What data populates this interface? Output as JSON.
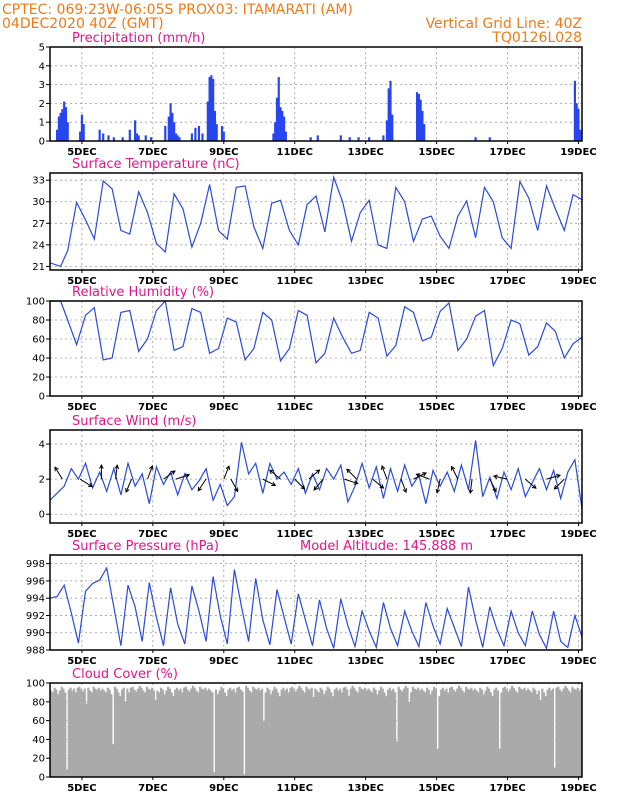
{
  "header": {
    "line1_left": "CPTEC:   069:23W-06:05S   PROX03: ITAMARATI (AM)",
    "line2_left": "04DEC2020 40Z (GMT)",
    "line2_right": "Vertical Grid Line: 40Z",
    "line3_right": "TQ0126L028"
  },
  "x_axis": {
    "tick_labels": [
      "5DEC",
      "7DEC",
      "9DEC",
      "11DEC",
      "13DEC",
      "15DEC",
      "17DEC",
      "19DEC"
    ],
    "tick_days": [
      5,
      7,
      9,
      11,
      13,
      15,
      17,
      19
    ],
    "range_days": [
      4.1,
      19.1
    ]
  },
  "colors": {
    "line": "#2a4bd7",
    "precip": "#2846f0",
    "cloud": "#aaaaaa",
    "header": "#f07a18",
    "title": "#e0168c"
  },
  "chart_data": [
    {
      "id": "precip",
      "type": "bar",
      "title": "Precipitation (mm/h)",
      "ylim": [
        0,
        5
      ],
      "yticks": [
        0,
        1,
        2,
        3,
        4,
        5
      ],
      "x": [
        4.3,
        4.35,
        4.4,
        4.45,
        4.5,
        4.55,
        4.6,
        4.95,
        5.0,
        5.05,
        5.5,
        5.6,
        5.75,
        5.9,
        6.15,
        6.35,
        6.5,
        6.55,
        6.6,
        6.8,
        6.95,
        7.35,
        7.45,
        7.5,
        7.55,
        7.6,
        7.65,
        7.7,
        7.75,
        8.1,
        8.2,
        8.3,
        8.4,
        8.55,
        8.6,
        8.65,
        8.7,
        8.75,
        8.8,
        8.95,
        9.0,
        10.4,
        10.45,
        10.5,
        10.55,
        10.6,
        10.65,
        10.7,
        10.75,
        11.45,
        11.65,
        12.3,
        12.55,
        12.8,
        13.1,
        13.5,
        13.6,
        13.65,
        13.7,
        13.75,
        14.45,
        14.5,
        14.55,
        14.6,
        14.65,
        16.1,
        16.5,
        18.9,
        18.95,
        19.0,
        19.05
      ],
      "values": [
        0.6,
        1.3,
        1.5,
        1.7,
        2.1,
        1.8,
        1.0,
        0.5,
        1.4,
        0.9,
        0.6,
        0.4,
        0.3,
        0.2,
        0.2,
        0.6,
        1.1,
        0.4,
        0.3,
        0.3,
        0.2,
        0.8,
        1.3,
        2.0,
        1.5,
        1.0,
        0.4,
        0.3,
        0.2,
        0.4,
        0.7,
        0.8,
        0.4,
        2.1,
        3.4,
        3.5,
        3.3,
        1.6,
        0.9,
        0.8,
        0.5,
        0.4,
        1.0,
        2.3,
        3.4,
        1.8,
        1.6,
        1.3,
        0.5,
        0.2,
        0.3,
        0.3,
        0.2,
        0.2,
        0.2,
        0.3,
        1.1,
        2.8,
        3.2,
        1.4,
        2.6,
        2.5,
        2.2,
        1.6,
        0.9,
        0.2,
        0.2,
        3.2,
        2.0,
        1.7,
        0.6
      ]
    },
    {
      "id": "temperature",
      "type": "line",
      "title": "Surface Temperature (nC)",
      "ylim": [
        20.5,
        34
      ],
      "yticks": [
        21,
        24,
        27,
        30,
        33
      ],
      "x": [
        4.1,
        4.4,
        4.6,
        4.85,
        5.1,
        5.35,
        5.6,
        5.85,
        6.1,
        6.35,
        6.6,
        6.85,
        7.1,
        7.35,
        7.6,
        7.85,
        8.1,
        8.35,
        8.6,
        8.85,
        9.1,
        9.35,
        9.6,
        9.85,
        10.1,
        10.35,
        10.6,
        10.85,
        11.1,
        11.35,
        11.6,
        11.85,
        12.1,
        12.35,
        12.6,
        12.85,
        13.1,
        13.35,
        13.6,
        13.85,
        14.1,
        14.35,
        14.6,
        14.85,
        15.1,
        15.35,
        15.6,
        15.85,
        16.1,
        16.35,
        16.6,
        16.85,
        17.1,
        17.35,
        17.6,
        17.85,
        18.1,
        18.35,
        18.6,
        18.85,
        19.1
      ],
      "values": [
        21.5,
        21.0,
        23.2,
        29.9,
        27.5,
        24.8,
        32.9,
        31.8,
        26.0,
        25.5,
        31.4,
        28.5,
        24.2,
        23.0,
        31.1,
        29.0,
        23.7,
        27.0,
        32.4,
        26.0,
        24.8,
        32.0,
        32.2,
        26.5,
        23.5,
        29.8,
        30.2,
        26.0,
        24.0,
        29.6,
        30.8,
        25.8,
        33.4,
        30.0,
        24.5,
        28.5,
        30.2,
        24.0,
        23.5,
        32.0,
        30.0,
        24.5,
        27.6,
        28.0,
        25.2,
        23.5,
        28.0,
        30.1,
        25.0,
        32.0,
        30.0,
        25.0,
        23.5,
        32.8,
        30.5,
        26.0,
        32.2,
        29.0,
        26.0,
        31.0,
        30.3
      ]
    },
    {
      "id": "humidity",
      "type": "line",
      "title": "Relative Humidity (%)",
      "ylim": [
        0,
        100
      ],
      "yticks": [
        0,
        20,
        40,
        60,
        80,
        100
      ],
      "x": [
        4.1,
        4.4,
        4.6,
        4.85,
        5.1,
        5.35,
        5.6,
        5.85,
        6.1,
        6.35,
        6.6,
        6.85,
        7.1,
        7.35,
        7.6,
        7.85,
        8.1,
        8.35,
        8.6,
        8.85,
        9.1,
        9.35,
        9.6,
        9.85,
        10.1,
        10.35,
        10.6,
        10.85,
        11.1,
        11.35,
        11.6,
        11.85,
        12.1,
        12.35,
        12.6,
        12.85,
        13.1,
        13.35,
        13.6,
        13.85,
        14.1,
        14.35,
        14.6,
        14.85,
        15.1,
        15.35,
        15.6,
        15.85,
        16.1,
        16.35,
        16.6,
        16.85,
        17.1,
        17.35,
        17.6,
        17.85,
        18.1,
        18.35,
        18.6,
        18.85,
        19.1
      ],
      "values": [
        100,
        100,
        80,
        54,
        85,
        93,
        38,
        40,
        88,
        90,
        47,
        60,
        90,
        100,
        48,
        52,
        92,
        88,
        45,
        50,
        82,
        78,
        38,
        50,
        88,
        80,
        37,
        50,
        90,
        85,
        35,
        45,
        82,
        62,
        45,
        48,
        88,
        82,
        42,
        53,
        94,
        88,
        58,
        62,
        89,
        98,
        48,
        60,
        84,
        90,
        32,
        50,
        80,
        76,
        43,
        52,
        77,
        68,
        40,
        55,
        62
      ]
    },
    {
      "id": "wind",
      "type": "line",
      "title": "Surface Wind (m/s)",
      "ylim": [
        -0.5,
        4.8
      ],
      "yticks": [
        0,
        2,
        4
      ],
      "x": [
        4.1,
        4.3,
        4.5,
        4.7,
        4.9,
        5.1,
        5.3,
        5.5,
        5.7,
        5.9,
        6.1,
        6.3,
        6.5,
        6.7,
        6.9,
        7.1,
        7.3,
        7.5,
        7.7,
        7.9,
        8.1,
        8.3,
        8.5,
        8.7,
        8.9,
        9.1,
        9.3,
        9.5,
        9.7,
        9.9,
        10.1,
        10.3,
        10.5,
        10.7,
        10.9,
        11.1,
        11.3,
        11.5,
        11.7,
        11.9,
        12.1,
        12.3,
        12.5,
        12.7,
        12.9,
        13.1,
        13.3,
        13.5,
        13.7,
        13.9,
        14.1,
        14.3,
        14.5,
        14.7,
        14.9,
        15.1,
        15.3,
        15.5,
        15.7,
        15.9,
        16.1,
        16.3,
        16.5,
        16.7,
        16.9,
        17.1,
        17.3,
        17.5,
        17.7,
        17.9,
        18.1,
        18.3,
        18.5,
        18.7,
        18.9,
        19.1
      ],
      "values": [
        0.8,
        1.2,
        1.6,
        2.6,
        2.0,
        2.9,
        1.5,
        2.4,
        1.3,
        2.6,
        1.1,
        2.9,
        1.6,
        2.3,
        0.6,
        2.7,
        1.7,
        2.4,
        1.1,
        2.3,
        1.4,
        1.9,
        2.6,
        0.8,
        1.7,
        0.5,
        1.0,
        4.1,
        2.3,
        2.9,
        1.2,
        2.9,
        2.0,
        2.4,
        1.7,
        2.6,
        1.2,
        2.3,
        1.4,
        2.6,
        2.0,
        2.8,
        0.7,
        1.6,
        2.9,
        1.5,
        2.7,
        0.9,
        2.6,
        1.3,
        2.8,
        1.6,
        2.2,
        0.6,
        2.5,
        1.6,
        2.4,
        1.3,
        2.8,
        1.4,
        4.2,
        1.0,
        2.1,
        0.9,
        2.4,
        1.4,
        2.6,
        1.0,
        1.8,
        2.6,
        1.4,
        2.5,
        0.9,
        2.4,
        3.1,
        0.3
      ],
      "arrows": {
        "x": [
          4.45,
          4.95,
          5.55,
          5.95,
          6.4,
          6.85,
          7.3,
          7.65,
          8.5,
          9.0,
          9.2,
          10.1,
          10.6,
          11.0,
          11.4,
          11.8,
          12.4,
          12.75,
          13.2,
          13.6,
          14.0,
          14.35,
          14.8,
          15.1,
          15.6,
          16.0,
          16.5,
          17.0,
          17.5,
          18.1,
          18.6
        ],
        "u": [
          -0.5,
          0.8,
          0.0,
          0.1,
          -0.3,
          0.3,
          0.7,
          0.9,
          -0.4,
          0.2,
          0.5,
          0.6,
          -0.6,
          0.6,
          0.7,
          -0.5,
          0.9,
          -0.7,
          0.6,
          -0.3,
          0.3,
          0.8,
          -0.8,
          -0.2,
          -0.4,
          -0.1,
          0.4,
          -0.9,
          0.7,
          0.7,
          -0.6
        ],
        "v": [
          0.8,
          -0.5,
          0.8,
          0.9,
          -0.7,
          0.8,
          0.5,
          0.3,
          -0.6,
          0.5,
          -0.9,
          -0.3,
          0.5,
          -0.6,
          0.6,
          -0.6,
          -0.3,
          0.7,
          -0.5,
          0.8,
          -0.8,
          0.4,
          0.3,
          -0.9,
          0.8,
          -0.8,
          -0.8,
          0.2,
          -0.6,
          0.2,
          -0.6
        ]
      }
    },
    {
      "id": "pressure",
      "type": "line",
      "title": "Surface Pressure (hPa)",
      "annotation": "Model Altitude: 145.888 m",
      "ylim": [
        988,
        999
      ],
      "yticks": [
        988,
        990,
        992,
        994,
        996,
        998
      ],
      "x": [
        4.1,
        4.3,
        4.5,
        4.7,
        4.9,
        5.1,
        5.3,
        5.5,
        5.7,
        5.9,
        6.1,
        6.3,
        6.5,
        6.7,
        6.9,
        7.1,
        7.3,
        7.5,
        7.7,
        7.9,
        8.1,
        8.3,
        8.5,
        8.7,
        8.9,
        9.1,
        9.3,
        9.5,
        9.7,
        9.9,
        10.1,
        10.3,
        10.5,
        10.7,
        10.9,
        11.1,
        11.3,
        11.5,
        11.7,
        11.9,
        12.1,
        12.3,
        12.5,
        12.7,
        12.9,
        13.1,
        13.3,
        13.5,
        13.7,
        13.9,
        14.1,
        14.3,
        14.5,
        14.7,
        14.9,
        15.1,
        15.3,
        15.5,
        15.7,
        15.9,
        16.1,
        16.3,
        16.5,
        16.7,
        16.9,
        17.1,
        17.3,
        17.5,
        17.7,
        17.9,
        18.1,
        18.3,
        18.5,
        18.7,
        18.9,
        19.1
      ],
      "values": [
        994.0,
        994.2,
        995.5,
        992.3,
        988.8,
        994.8,
        995.7,
        996.1,
        997.5,
        993.0,
        988.5,
        995.5,
        993.0,
        989.0,
        995.8,
        991.8,
        988.5,
        995.2,
        991.0,
        988.7,
        995.4,
        992.5,
        989.0,
        996.5,
        992.0,
        988.7,
        997.3,
        993.0,
        989.0,
        996.3,
        991.5,
        988.6,
        995.0,
        991.8,
        988.7,
        994.5,
        991.5,
        988.5,
        993.8,
        990.5,
        988.2,
        993.9,
        990.8,
        988.4,
        992.5,
        990.2,
        988.3,
        993.5,
        990.5,
        988.5,
        992.5,
        990.2,
        988.4,
        993.5,
        990.8,
        988.7,
        992.8,
        990.6,
        988.4,
        995.3,
        991.5,
        988.3,
        993.0,
        990.4,
        988.5,
        992.5,
        990.0,
        988.5,
        992.5,
        989.8,
        988.2,
        992.5,
        989.0,
        988.3,
        992.0,
        989.5
      ]
    },
    {
      "id": "cloud",
      "type": "bar",
      "title": "Cloud Cover (%)",
      "ylim": [
        0,
        100
      ],
      "yticks": [
        0,
        20,
        40,
        60,
        80,
        100
      ],
      "x_range": [
        4.1,
        19.1
      ],
      "step": 0.05,
      "base_profile": [
        92,
        90,
        95,
        93,
        88,
        92,
        96,
        94,
        90,
        86,
        93,
        95,
        92,
        94,
        90,
        95,
        96,
        93,
        91,
        94,
        97,
        95,
        92,
        90,
        96,
        94,
        93,
        95,
        92,
        94
      ],
      "dips": {
        "x": [
          4.55,
          5.1,
          5.85,
          6.2,
          7.05,
          8.7,
          9.55,
          10.1,
          11.5,
          12.5,
          13.85,
          14.2,
          15.0,
          16.75,
          17.9,
          18.3
        ],
        "values": [
          8,
          78,
          35,
          80,
          82,
          5,
          3,
          60,
          85,
          86,
          38,
          80,
          30,
          30,
          82,
          10
        ]
      }
    }
  ]
}
